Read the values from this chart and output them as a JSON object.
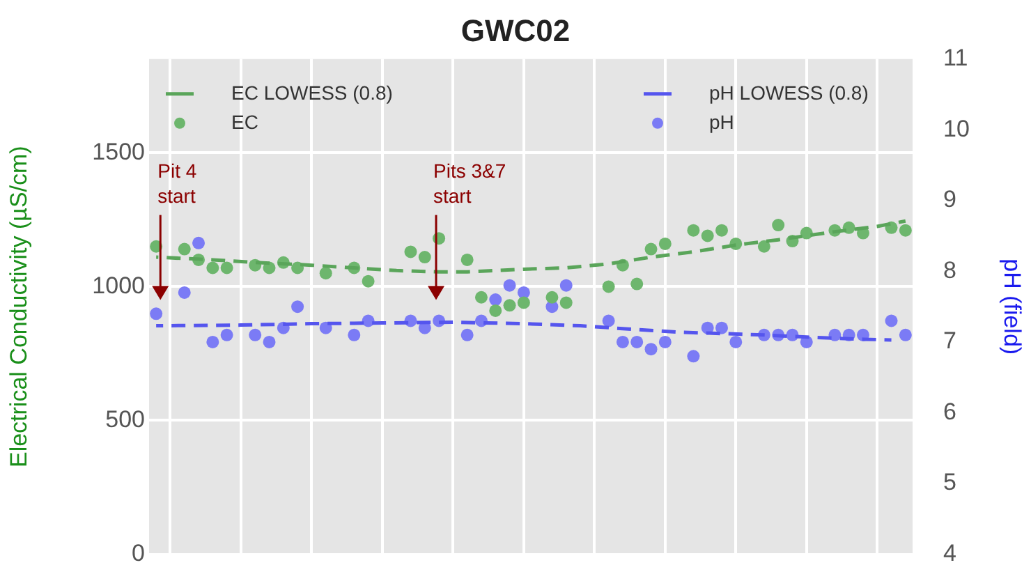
{
  "chart_data": {
    "type": "scatter",
    "title": "GWC02",
    "ylabel": "Electrical Conductivity (µS/cm)",
    "y2label": "pH (field)",
    "categories": [
      null,
      null,
      null,
      null,
      null,
      null,
      null,
      null,
      null,
      null,
      null,
      null,
      null,
      null,
      null,
      null,
      null,
      null,
      null,
      null,
      null,
      null,
      null,
      null,
      null,
      null,
      null,
      null,
      null,
      null,
      null,
      null,
      null,
      null,
      null,
      null,
      null,
      null,
      null,
      null,
      null,
      null,
      null,
      null,
      null,
      null,
      null,
      null,
      null,
      null,
      null,
      null,
      null,
      null
    ],
    "ylim": [
      0,
      1850
    ],
    "yticks": [
      0,
      500,
      1000,
      1500
    ],
    "y2lim": [
      4,
      11
    ],
    "y2ticks": [
      4,
      5,
      6,
      7,
      8,
      9,
      10,
      11
    ],
    "grid": true,
    "legend": "top",
    "tick_labels": "y",
    "series": [
      {
        "name": "EC LOWESS (0.8)",
        "type": "line",
        "line_style": "dashed",
        "marker": "none",
        "color": "#5aa55a",
        "values": [
          1110,
          null,
          null,
          null,
          1100,
          null,
          null,
          1090,
          null,
          null,
          null,
          1080,
          null,
          null,
          1070,
          null,
          null,
          1060,
          null,
          null,
          1055,
          null,
          1055,
          null,
          null,
          null,
          1065,
          null,
          null,
          1070,
          null,
          null,
          1085,
          null,
          null,
          1110,
          null,
          null,
          1130,
          null,
          null,
          1155,
          null,
          null,
          1175,
          null,
          null,
          null,
          1205,
          null,
          null,
          1225,
          null,
          1245
        ]
      },
      {
        "name": "EC",
        "type": "scatter",
        "marker": "circle",
        "color": "#6db66d",
        "values": [
          1150,
          null,
          1140,
          1100,
          1070,
          1070,
          null,
          1080,
          1070,
          1090,
          1070,
          null,
          1050,
          null,
          1070,
          1020,
          null,
          null,
          1130,
          1110,
          1180,
          null,
          1100,
          960,
          910,
          930,
          940,
          null,
          960,
          940,
          null,
          null,
          1000,
          1080,
          1010,
          1140,
          1160,
          null,
          1210,
          1190,
          1210,
          1160,
          null,
          1150,
          1230,
          1170,
          1200,
          null,
          1210,
          1220,
          1200,
          null,
          1220,
          1210
        ]
      },
      {
        "name": "pH LOWESS (0.8)",
        "type": "line",
        "axis": "y2",
        "line_style": "dashed",
        "marker": "none",
        "color": "#5555ee",
        "values": [
          7.23,
          null,
          null,
          null,
          null,
          null,
          7.24,
          null,
          null,
          null,
          null,
          7.26,
          null,
          null,
          null,
          null,
          7.27,
          null,
          null,
          null,
          null,
          7.28,
          null,
          null,
          null,
          null,
          7.26,
          null,
          null,
          null,
          7.23,
          null,
          null,
          7.19,
          null,
          null,
          null,
          7.14,
          null,
          null,
          7.12,
          null,
          null,
          7.1,
          null,
          null,
          7.07,
          null,
          null,
          null,
          7.04,
          null,
          7.03,
          null
        ]
      },
      {
        "name": "pH",
        "type": "scatter",
        "axis": "y2",
        "marker": "circle",
        "color": "#7b7bf5",
        "values": [
          7.4,
          null,
          7.7,
          8.4,
          7.0,
          7.1,
          null,
          7.1,
          7.0,
          7.2,
          7.5,
          null,
          7.2,
          null,
          7.1,
          7.3,
          null,
          null,
          7.3,
          7.2,
          7.3,
          null,
          7.1,
          7.3,
          7.6,
          7.8,
          7.7,
          null,
          7.5,
          7.8,
          null,
          null,
          7.3,
          7.0,
          7.0,
          6.9,
          7.0,
          null,
          6.8,
          7.2,
          7.2,
          7.0,
          null,
          7.1,
          7.1,
          7.1,
          7.0,
          null,
          7.1,
          7.1,
          7.1,
          null,
          7.3,
          7.1
        ]
      }
    ],
    "annotations": [
      "Pit 4\nstart",
      "Pits 3&7\nstart"
    ]
  }
}
